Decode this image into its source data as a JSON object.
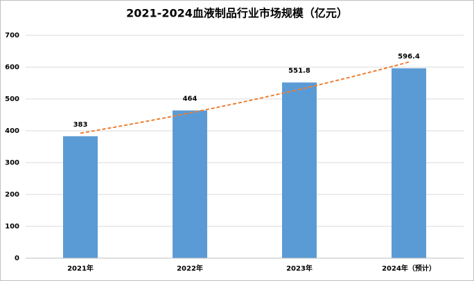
{
  "chart_data": {
    "type": "bar",
    "title": "2021-2024血液制品行业市场规模（亿元）",
    "categories": [
      "2021年",
      "2022年",
      "2023年",
      "2024年（预计）"
    ],
    "values": [
      383,
      464,
      551.8,
      596.4
    ],
    "color": "#5b9bd5",
    "ylim": [
      0,
      700
    ],
    "yticks": [
      0,
      100,
      200,
      300,
      400,
      500,
      600,
      700
    ],
    "grid": true,
    "trendline": {
      "type": "exponential",
      "color": "#ed7d31",
      "dashed": true
    }
  }
}
